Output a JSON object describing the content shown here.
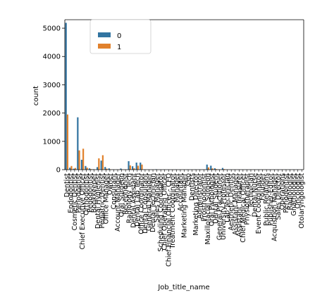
{
  "chart_data": {
    "type": "bar",
    "xlabel": "Job_title_name",
    "ylabel": "count",
    "ylim": [
      0,
      5300
    ],
    "yticks": [
      0,
      1000,
      2000,
      3000,
      4000,
      5000
    ],
    "grid": false,
    "legend_placement": "top-left",
    "categories": [
      "Dentist",
      "Endodontist",
      "Cosmetic Dentist",
      "Periodontist",
      "Chief Executive Officer",
      "Orthodontist",
      "Pedodontist",
      "Bookkeeper",
      "Dental Hygienist",
      "Pediatric Dentist",
      "Office Manager",
      "Owner",
      "Consultant",
      "Account Manager",
      "Oral Surgeon",
      "Receptionist",
      "Radiology Tech",
      "Dental Assistant",
      "Dental Lab Tech",
      "Office Coordinator",
      "Dental Consultant",
      "General Manager",
      "Dental Technician",
      "Sales Manager",
      "Scheduling Coordinator",
      "Chief Operating Officer",
      "Chief Financial Officer - CFO",
      "Treatment Coordinator",
      "Manager",
      "Accountant",
      "Marketing Manager",
      "Ceo",
      "Dentists",
      "Marketing Director",
      "Administrator",
      "Prosthodontist",
      "Maxillofacial Surgeon",
      "Oral Pathologist",
      "Dental Student",
      "General Practitioner",
      "University Professor",
      "Lab Technician",
      "Aesthetic Dentist",
      "Assistant Manager",
      "Assistant Treasurer",
      "Chief Medical Officer",
      "Physiotherapist",
      "Technician",
      "Dental Nurse",
      "Event Coordinator",
      "Founder",
      "Public Relations",
      "Publisher-Editor",
      "Acquisition Manager",
      "Sales Director",
      "Operations",
      "Periodontist",
      "Radiologist",
      "Gnathologist",
      "Oncologist",
      "Otolaryngologist"
    ],
    "series": [
      {
        "name": "0",
        "color": "#3274a1",
        "values": [
          5190,
          70,
          35,
          1850,
          350,
          130,
          45,
          15,
          90,
          320,
          95,
          45,
          8,
          8,
          40,
          5,
          300,
          120,
          250,
          250,
          8,
          5,
          5,
          15,
          5,
          8,
          5,
          5,
          8,
          5,
          5,
          5,
          5,
          8,
          5,
          5,
          180,
          140,
          50,
          10,
          60,
          5,
          5,
          5,
          5,
          5,
          5,
          5,
          5,
          5,
          5,
          5,
          5,
          5,
          5,
          5,
          5,
          5,
          5,
          5,
          5
        ]
      },
      {
        "name": "1",
        "color": "#e1812c",
        "values": [
          1950,
          130,
          60,
          680,
          740,
          70,
          20,
          5,
          400,
          510,
          35,
          10,
          4,
          4,
          10,
          3,
          150,
          50,
          140,
          180,
          4,
          3,
          3,
          5,
          3,
          4,
          3,
          3,
          3,
          3,
          3,
          3,
          3,
          3,
          3,
          3,
          80,
          45,
          20,
          5,
          20,
          3,
          3,
          3,
          3,
          3,
          3,
          3,
          3,
          3,
          3,
          3,
          3,
          3,
          3,
          3,
          3,
          3,
          3,
          3,
          3
        ]
      }
    ],
    "legend": [
      "0",
      "1"
    ]
  }
}
